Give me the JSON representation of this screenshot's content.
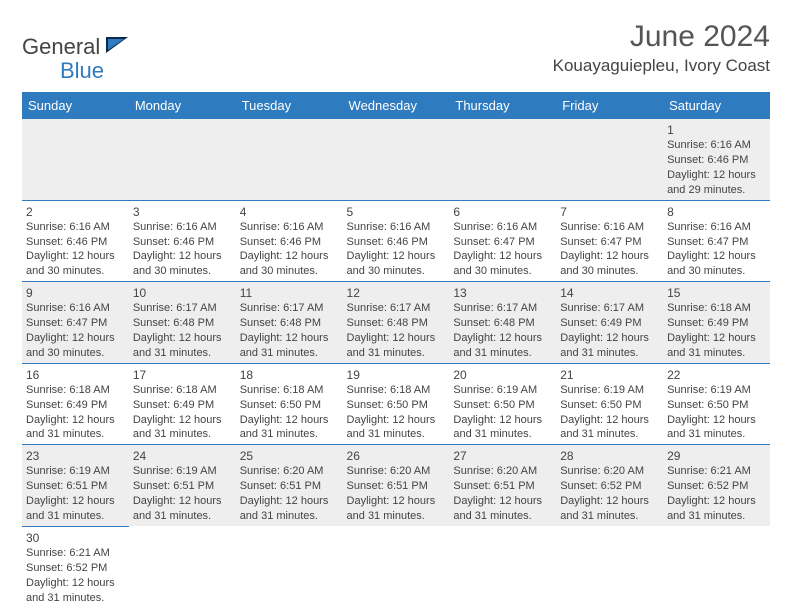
{
  "brand": {
    "name_part1": "General",
    "name_part2": "Blue"
  },
  "title": "June 2024",
  "location": "Kouayaguiepleu, Ivory Coast",
  "colors": {
    "header_bg": "#2f7bbf",
    "header_text": "#ffffff",
    "odd_row": "#eeeeee",
    "even_row": "#ffffff",
    "divider_blue": "#2f7bbf"
  },
  "dayHeaders": [
    "Sunday",
    "Monday",
    "Tuesday",
    "Wednesday",
    "Thursday",
    "Friday",
    "Saturday"
  ],
  "weeks": [
    [
      {
        "blank": true
      },
      {
        "blank": true
      },
      {
        "blank": true
      },
      {
        "blank": true
      },
      {
        "blank": true
      },
      {
        "blank": true
      },
      {
        "day": "1",
        "sunrise": "Sunrise: 6:16 AM",
        "sunset": "Sunset: 6:46 PM",
        "daylight1": "Daylight: 12 hours",
        "daylight2": "and 29 minutes."
      }
    ],
    [
      {
        "day": "2",
        "sunrise": "Sunrise: 6:16 AM",
        "sunset": "Sunset: 6:46 PM",
        "daylight1": "Daylight: 12 hours",
        "daylight2": "and 30 minutes."
      },
      {
        "day": "3",
        "sunrise": "Sunrise: 6:16 AM",
        "sunset": "Sunset: 6:46 PM",
        "daylight1": "Daylight: 12 hours",
        "daylight2": "and 30 minutes."
      },
      {
        "day": "4",
        "sunrise": "Sunrise: 6:16 AM",
        "sunset": "Sunset: 6:46 PM",
        "daylight1": "Daylight: 12 hours",
        "daylight2": "and 30 minutes."
      },
      {
        "day": "5",
        "sunrise": "Sunrise: 6:16 AM",
        "sunset": "Sunset: 6:46 PM",
        "daylight1": "Daylight: 12 hours",
        "daylight2": "and 30 minutes."
      },
      {
        "day": "6",
        "sunrise": "Sunrise: 6:16 AM",
        "sunset": "Sunset: 6:47 PM",
        "daylight1": "Daylight: 12 hours",
        "daylight2": "and 30 minutes."
      },
      {
        "day": "7",
        "sunrise": "Sunrise: 6:16 AM",
        "sunset": "Sunset: 6:47 PM",
        "daylight1": "Daylight: 12 hours",
        "daylight2": "and 30 minutes."
      },
      {
        "day": "8",
        "sunrise": "Sunrise: 6:16 AM",
        "sunset": "Sunset: 6:47 PM",
        "daylight1": "Daylight: 12 hours",
        "daylight2": "and 30 minutes."
      }
    ],
    [
      {
        "day": "9",
        "sunrise": "Sunrise: 6:16 AM",
        "sunset": "Sunset: 6:47 PM",
        "daylight1": "Daylight: 12 hours",
        "daylight2": "and 30 minutes."
      },
      {
        "day": "10",
        "sunrise": "Sunrise: 6:17 AM",
        "sunset": "Sunset: 6:48 PM",
        "daylight1": "Daylight: 12 hours",
        "daylight2": "and 31 minutes."
      },
      {
        "day": "11",
        "sunrise": "Sunrise: 6:17 AM",
        "sunset": "Sunset: 6:48 PM",
        "daylight1": "Daylight: 12 hours",
        "daylight2": "and 31 minutes."
      },
      {
        "day": "12",
        "sunrise": "Sunrise: 6:17 AM",
        "sunset": "Sunset: 6:48 PM",
        "daylight1": "Daylight: 12 hours",
        "daylight2": "and 31 minutes."
      },
      {
        "day": "13",
        "sunrise": "Sunrise: 6:17 AM",
        "sunset": "Sunset: 6:48 PM",
        "daylight1": "Daylight: 12 hours",
        "daylight2": "and 31 minutes."
      },
      {
        "day": "14",
        "sunrise": "Sunrise: 6:17 AM",
        "sunset": "Sunset: 6:49 PM",
        "daylight1": "Daylight: 12 hours",
        "daylight2": "and 31 minutes."
      },
      {
        "day": "15",
        "sunrise": "Sunrise: 6:18 AM",
        "sunset": "Sunset: 6:49 PM",
        "daylight1": "Daylight: 12 hours",
        "daylight2": "and 31 minutes."
      }
    ],
    [
      {
        "day": "16",
        "sunrise": "Sunrise: 6:18 AM",
        "sunset": "Sunset: 6:49 PM",
        "daylight1": "Daylight: 12 hours",
        "daylight2": "and 31 minutes."
      },
      {
        "day": "17",
        "sunrise": "Sunrise: 6:18 AM",
        "sunset": "Sunset: 6:49 PM",
        "daylight1": "Daylight: 12 hours",
        "daylight2": "and 31 minutes."
      },
      {
        "day": "18",
        "sunrise": "Sunrise: 6:18 AM",
        "sunset": "Sunset: 6:50 PM",
        "daylight1": "Daylight: 12 hours",
        "daylight2": "and 31 minutes."
      },
      {
        "day": "19",
        "sunrise": "Sunrise: 6:18 AM",
        "sunset": "Sunset: 6:50 PM",
        "daylight1": "Daylight: 12 hours",
        "daylight2": "and 31 minutes."
      },
      {
        "day": "20",
        "sunrise": "Sunrise: 6:19 AM",
        "sunset": "Sunset: 6:50 PM",
        "daylight1": "Daylight: 12 hours",
        "daylight2": "and 31 minutes."
      },
      {
        "day": "21",
        "sunrise": "Sunrise: 6:19 AM",
        "sunset": "Sunset: 6:50 PM",
        "daylight1": "Daylight: 12 hours",
        "daylight2": "and 31 minutes."
      },
      {
        "day": "22",
        "sunrise": "Sunrise: 6:19 AM",
        "sunset": "Sunset: 6:50 PM",
        "daylight1": "Daylight: 12 hours",
        "daylight2": "and 31 minutes."
      }
    ],
    [
      {
        "day": "23",
        "sunrise": "Sunrise: 6:19 AM",
        "sunset": "Sunset: 6:51 PM",
        "daylight1": "Daylight: 12 hours",
        "daylight2": "and 31 minutes."
      },
      {
        "day": "24",
        "sunrise": "Sunrise: 6:19 AM",
        "sunset": "Sunset: 6:51 PM",
        "daylight1": "Daylight: 12 hours",
        "daylight2": "and 31 minutes."
      },
      {
        "day": "25",
        "sunrise": "Sunrise: 6:20 AM",
        "sunset": "Sunset: 6:51 PM",
        "daylight1": "Daylight: 12 hours",
        "daylight2": "and 31 minutes."
      },
      {
        "day": "26",
        "sunrise": "Sunrise: 6:20 AM",
        "sunset": "Sunset: 6:51 PM",
        "daylight1": "Daylight: 12 hours",
        "daylight2": "and 31 minutes."
      },
      {
        "day": "27",
        "sunrise": "Sunrise: 6:20 AM",
        "sunset": "Sunset: 6:51 PM",
        "daylight1": "Daylight: 12 hours",
        "daylight2": "and 31 minutes."
      },
      {
        "day": "28",
        "sunrise": "Sunrise: 6:20 AM",
        "sunset": "Sunset: 6:52 PM",
        "daylight1": "Daylight: 12 hours",
        "daylight2": "and 31 minutes."
      },
      {
        "day": "29",
        "sunrise": "Sunrise: 6:21 AM",
        "sunset": "Sunset: 6:52 PM",
        "daylight1": "Daylight: 12 hours",
        "daylight2": "and 31 minutes."
      }
    ],
    [
      {
        "day": "30",
        "sunrise": "Sunrise: 6:21 AM",
        "sunset": "Sunset: 6:52 PM",
        "daylight1": "Daylight: 12 hours",
        "daylight2": "and 31 minutes."
      },
      {
        "empty": true
      },
      {
        "empty": true
      },
      {
        "empty": true
      },
      {
        "empty": true
      },
      {
        "empty": true
      },
      {
        "empty": true
      }
    ]
  ]
}
